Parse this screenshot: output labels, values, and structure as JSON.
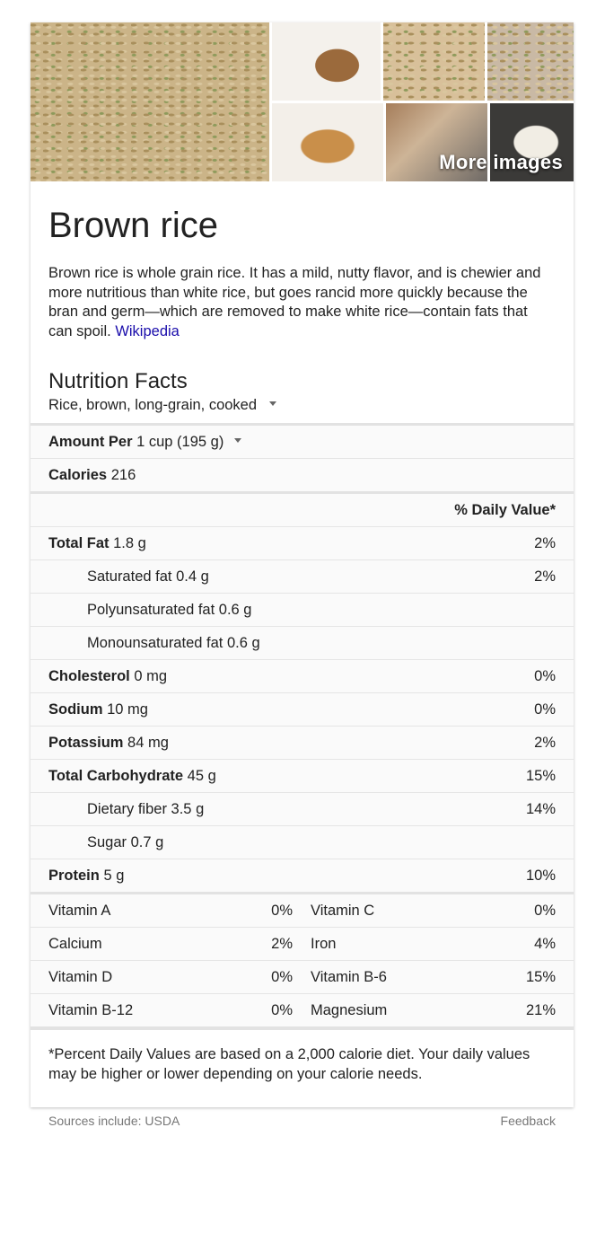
{
  "images": {
    "more_label": "More images",
    "tiles": [
      "brown-rice-grains",
      "brown-rice-plate",
      "cooked-brown-rice",
      "brown-rice-bowl",
      "fried-rice-plate",
      "rice-jar",
      "rice-bowl"
    ]
  },
  "title": "Brown rice",
  "description": {
    "text": "Brown rice is whole grain rice. It has a mild, nutty flavor, and is chewier and more nutritious than white rice, but goes rancid more quickly because the bran and germ—which are removed to make white rice—contain fats that can spoil.",
    "source_link": "Wikipedia"
  },
  "nutrition": {
    "title": "Nutrition Facts",
    "food_selector": "Rice, brown, long-grain, cooked",
    "amount_label": "Amount Per",
    "amount_value": "1 cup (195 g)",
    "calories_label": "Calories",
    "calories_value": "216",
    "daily_value_header": "% Daily Value*",
    "rows": [
      {
        "label": "Total Fat",
        "amount": "1.8 g",
        "dv": "2%"
      },
      {
        "label": "Saturated fat",
        "amount": "0.4 g",
        "dv": "2%"
      },
      {
        "label": "Polyunsaturated fat",
        "amount": "0.6 g",
        "dv": ""
      },
      {
        "label": "Monounsaturated fat",
        "amount": "0.6 g",
        "dv": ""
      },
      {
        "label": "Cholesterol",
        "amount": "0 mg",
        "dv": "0%"
      },
      {
        "label": "Sodium",
        "amount": "10 mg",
        "dv": "0%"
      },
      {
        "label": "Potassium",
        "amount": "84 mg",
        "dv": "2%"
      },
      {
        "label": "Total Carbohydrate",
        "amount": "45 g",
        "dv": "15%"
      },
      {
        "label": "Dietary fiber",
        "amount": "3.5 g",
        "dv": "14%"
      },
      {
        "label": "Sugar",
        "amount": "0.7 g",
        "dv": ""
      },
      {
        "label": "Protein",
        "amount": "5 g",
        "dv": "10%"
      }
    ],
    "vitamins": [
      {
        "left_name": "Vitamin A",
        "left_value": "0%",
        "right_name": "Vitamin C",
        "right_value": "0%"
      },
      {
        "left_name": "Calcium",
        "left_value": "2%",
        "right_name": "Iron",
        "right_value": "4%"
      },
      {
        "left_name": "Vitamin D",
        "left_value": "0%",
        "right_name": "Vitamin B-6",
        "right_value": "15%"
      },
      {
        "left_name": "Vitamin B-12",
        "left_value": "0%",
        "right_name": "Magnesium",
        "right_value": "21%"
      }
    ],
    "footnote": "*Percent Daily Values are based on a 2,000 calorie diet. Your daily values may be higher or lower depending on your calorie needs."
  },
  "footer": {
    "sources": "Sources include: USDA",
    "feedback": "Feedback"
  }
}
